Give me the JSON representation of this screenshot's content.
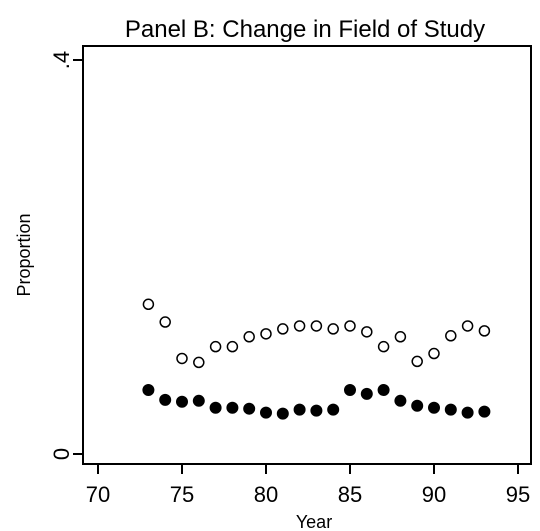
{
  "chart_data": {
    "type": "scatter",
    "title": "Panel B: Change in Field of Study",
    "xlabel": "Year",
    "ylabel": "Proportion",
    "xlim": [
      70,
      95
    ],
    "ylim": [
      0,
      0.4
    ],
    "xticks": [
      {
        "value": 70,
        "label": "70"
      },
      {
        "value": 75,
        "label": "75"
      },
      {
        "value": 80,
        "label": "80"
      },
      {
        "value": 85,
        "label": "85"
      },
      {
        "value": 90,
        "label": "90"
      },
      {
        "value": 95,
        "label": "95"
      }
    ],
    "yticks": [
      {
        "value": 0,
        "label": "0"
      },
      {
        "value": 0.4,
        "label": ".4"
      }
    ],
    "grid": false,
    "legend": "none",
    "series": [
      {
        "marker": "hollow-circle",
        "color": "#000000",
        "x": [
          73,
          74,
          75,
          76,
          77,
          78,
          79,
          80,
          81,
          82,
          83,
          84,
          85,
          86,
          87,
          88,
          89,
          90,
          91,
          92,
          93
        ],
        "y": [
          0.152,
          0.134,
          0.097,
          0.093,
          0.109,
          0.109,
          0.119,
          0.122,
          0.127,
          0.13,
          0.13,
          0.127,
          0.13,
          0.124,
          0.109,
          0.119,
          0.094,
          0.102,
          0.12,
          0.13,
          0.125
        ]
      },
      {
        "marker": "filled-circle",
        "color": "#000000",
        "x": [
          73,
          74,
          75,
          76,
          77,
          78,
          79,
          80,
          81,
          82,
          83,
          84,
          85,
          86,
          87,
          88,
          89,
          90,
          91,
          92,
          93
        ],
        "y": [
          0.065,
          0.055,
          0.053,
          0.054,
          0.047,
          0.047,
          0.046,
          0.042,
          0.041,
          0.045,
          0.044,
          0.045,
          0.065,
          0.061,
          0.065,
          0.054,
          0.049,
          0.047,
          0.045,
          0.042,
          0.043
        ]
      }
    ]
  }
}
